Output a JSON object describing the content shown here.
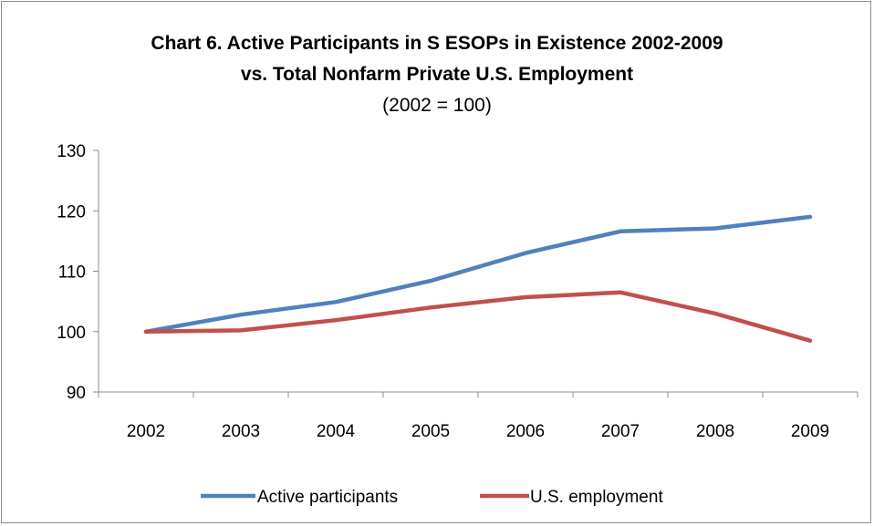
{
  "chart_data": {
    "type": "line",
    "title_lines": [
      "Chart 6. Active Participants in S ESOPs in Existence 2002-2009",
      "vs. Total Nonfarm Private U.S. Employment"
    ],
    "subtitle": "(2002 = 100)",
    "xlabel": "",
    "ylabel": "",
    "categories": [
      "2002",
      "2003",
      "2004",
      "2005",
      "2006",
      "2007",
      "2008",
      "2009"
    ],
    "ylim": [
      90,
      130
    ],
    "yticks": [
      90,
      100,
      110,
      120,
      130
    ],
    "grid": false,
    "legend_position": "bottom",
    "series": [
      {
        "name": "Active participants",
        "color": "#4f81bd",
        "values": [
          100,
          102.8,
          104.9,
          108.4,
          113.0,
          116.6,
          117.1,
          119.0
        ]
      },
      {
        "name": "U.S. employment",
        "color": "#c0504d",
        "values": [
          100,
          100.2,
          101.9,
          104.0,
          105.7,
          106.5,
          103.0,
          98.5
        ]
      }
    ]
  }
}
